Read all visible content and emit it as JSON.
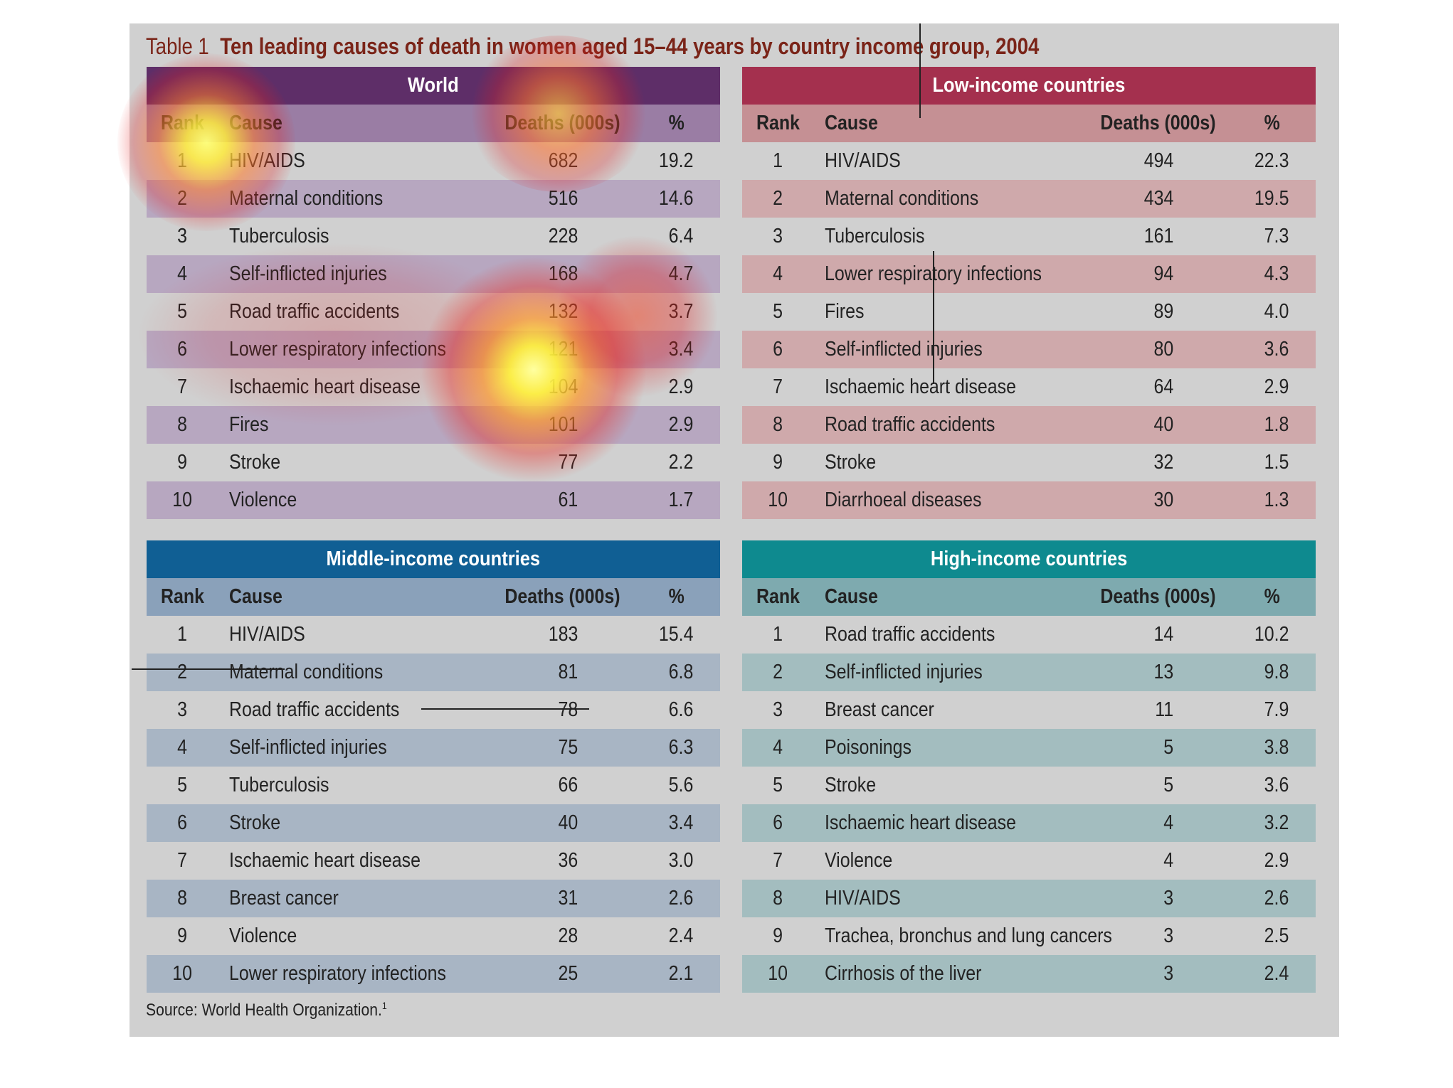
{
  "title": {
    "number": "Table 1",
    "text": "Ten leading causes of death in women aged 15–44 years by country income group, 2004"
  },
  "columns": {
    "rank": "Rank",
    "cause": "Cause",
    "deaths": "Deaths (000s)",
    "pct": "%"
  },
  "tables": {
    "world": {
      "title": "World",
      "rows": [
        {
          "rank": "1",
          "cause": "HIV/AIDS",
          "deaths": "682",
          "pct": "19.2"
        },
        {
          "rank": "2",
          "cause": "Maternal conditions",
          "deaths": "516",
          "pct": "14.6"
        },
        {
          "rank": "3",
          "cause": "Tuberculosis",
          "deaths": "228",
          "pct": "6.4"
        },
        {
          "rank": "4",
          "cause": "Self-inflicted injuries",
          "deaths": "168",
          "pct": "4.7"
        },
        {
          "rank": "5",
          "cause": "Road traffic accidents",
          "deaths": "132",
          "pct": "3.7"
        },
        {
          "rank": "6",
          "cause": "Lower respiratory infections",
          "deaths": "121",
          "pct": "3.4"
        },
        {
          "rank": "7",
          "cause": "Ischaemic heart disease",
          "deaths": "104",
          "pct": "2.9"
        },
        {
          "rank": "8",
          "cause": "Fires",
          "deaths": "101",
          "pct": "2.9"
        },
        {
          "rank": "9",
          "cause": "Stroke",
          "deaths": "77",
          "pct": "2.2"
        },
        {
          "rank": "10",
          "cause": "Violence",
          "deaths": "61",
          "pct": "1.7"
        }
      ]
    },
    "low": {
      "title": "Low-income countries",
      "rows": [
        {
          "rank": "1",
          "cause": "HIV/AIDS",
          "deaths": "494",
          "pct": "22.3"
        },
        {
          "rank": "2",
          "cause": "Maternal conditions",
          "deaths": "434",
          "pct": "19.5"
        },
        {
          "rank": "3",
          "cause": "Tuberculosis",
          "deaths": "161",
          "pct": "7.3"
        },
        {
          "rank": "4",
          "cause": "Lower respiratory infections",
          "deaths": "94",
          "pct": "4.3"
        },
        {
          "rank": "5",
          "cause": "Fires",
          "deaths": "89",
          "pct": "4.0"
        },
        {
          "rank": "6",
          "cause": "Self-inflicted injuries",
          "deaths": "80",
          "pct": "3.6"
        },
        {
          "rank": "7",
          "cause": "Ischaemic heart disease",
          "deaths": "64",
          "pct": "2.9"
        },
        {
          "rank": "8",
          "cause": "Road traffic accidents",
          "deaths": "40",
          "pct": "1.8"
        },
        {
          "rank": "9",
          "cause": "Stroke",
          "deaths": "32",
          "pct": "1.5"
        },
        {
          "rank": "10",
          "cause": "Diarrhoeal diseases",
          "deaths": "30",
          "pct": "1.3"
        }
      ]
    },
    "mid": {
      "title": "Middle-income countries",
      "rows": [
        {
          "rank": "1",
          "cause": "HIV/AIDS",
          "deaths": "183",
          "pct": "15.4"
        },
        {
          "rank": "2",
          "cause": "Maternal conditions",
          "deaths": "81",
          "pct": "6.8"
        },
        {
          "rank": "3",
          "cause": "Road traffic accidents",
          "deaths": "78",
          "pct": "6.6"
        },
        {
          "rank": "4",
          "cause": "Self-inflicted injuries",
          "deaths": "75",
          "pct": "6.3"
        },
        {
          "rank": "5",
          "cause": "Tuberculosis",
          "deaths": "66",
          "pct": "5.6"
        },
        {
          "rank": "6",
          "cause": "Stroke",
          "deaths": "40",
          "pct": "3.4"
        },
        {
          "rank": "7",
          "cause": "Ischaemic heart disease",
          "deaths": "36",
          "pct": "3.0"
        },
        {
          "rank": "8",
          "cause": "Breast cancer",
          "deaths": "31",
          "pct": "2.6"
        },
        {
          "rank": "9",
          "cause": "Violence",
          "deaths": "28",
          "pct": "2.4"
        },
        {
          "rank": "10",
          "cause": "Lower respiratory infections",
          "deaths": "25",
          "pct": "2.1"
        }
      ]
    },
    "high": {
      "title": "High-income countries",
      "rows": [
        {
          "rank": "1",
          "cause": "Road traffic accidents",
          "deaths": "14",
          "pct": "10.2"
        },
        {
          "rank": "2",
          "cause": "Self-inflicted injuries",
          "deaths": "13",
          "pct": "9.8"
        },
        {
          "rank": "3",
          "cause": "Breast cancer",
          "deaths": "11",
          "pct": "7.9"
        },
        {
          "rank": "4",
          "cause": "Poisonings",
          "deaths": "5",
          "pct": "3.8"
        },
        {
          "rank": "5",
          "cause": "Stroke",
          "deaths": "5",
          "pct": "3.6"
        },
        {
          "rank": "6",
          "cause": "Ischaemic heart disease",
          "deaths": "4",
          "pct": "3.2"
        },
        {
          "rank": "7",
          "cause": "Violence",
          "deaths": "4",
          "pct": "2.9"
        },
        {
          "rank": "8",
          "cause": "HIV/AIDS",
          "deaths": "3",
          "pct": "2.6"
        },
        {
          "rank": "9",
          "cause": "Trachea, bronchus and lung cancers",
          "deaths": "3",
          "pct": "2.5"
        },
        {
          "rank": "10",
          "cause": "Cirrhosis of the liver",
          "deaths": "3",
          "pct": "2.4"
        }
      ]
    }
  },
  "source": {
    "text": "Source: World Health Organization.",
    "footnote": "1"
  },
  "colors": {
    "world": "#5e2e68",
    "low": "#a4304e",
    "mid": "#105f94",
    "high": "#0e8a8f",
    "title": "#7a2418",
    "panel": "#d0d0d0"
  }
}
